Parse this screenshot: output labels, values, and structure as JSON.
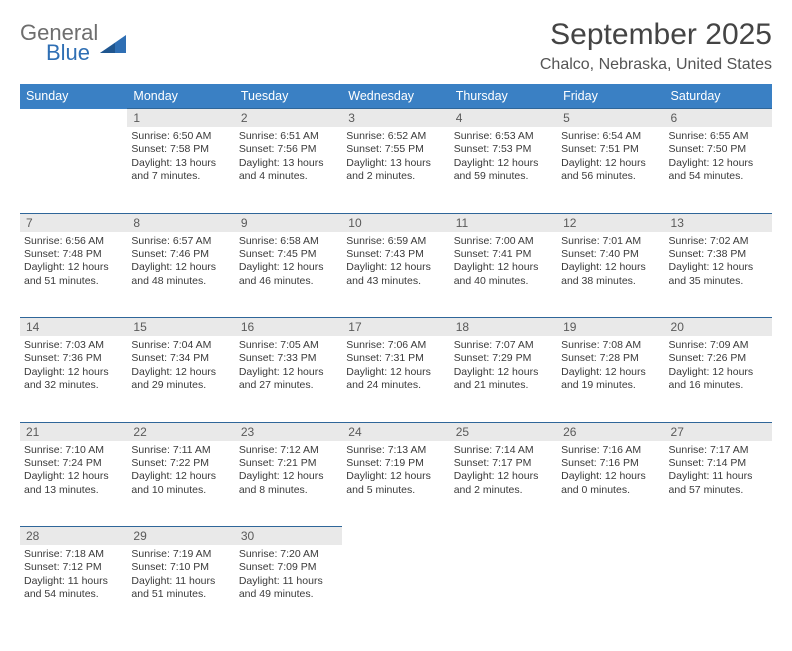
{
  "logo": {
    "line1": "General",
    "line2": "Blue"
  },
  "title": "September 2025",
  "location": "Chalco, Nebraska, United States",
  "dayHeaders": [
    "Sunday",
    "Monday",
    "Tuesday",
    "Wednesday",
    "Thursday",
    "Friday",
    "Saturday"
  ],
  "colors": {
    "headerBg": "#3a80c4",
    "rowBorder": "#2f6699",
    "dayBg": "#e9e9e9",
    "logoBlue": "#2f6fb4",
    "logoGray": "#6e6e6e"
  },
  "weeks": [
    [
      {
        "num": "",
        "sunrise": "",
        "sunset": "",
        "daylight": ""
      },
      {
        "num": "1",
        "sunrise": "Sunrise: 6:50 AM",
        "sunset": "Sunset: 7:58 PM",
        "daylight": "Daylight: 13 hours and 7 minutes."
      },
      {
        "num": "2",
        "sunrise": "Sunrise: 6:51 AM",
        "sunset": "Sunset: 7:56 PM",
        "daylight": "Daylight: 13 hours and 4 minutes."
      },
      {
        "num": "3",
        "sunrise": "Sunrise: 6:52 AM",
        "sunset": "Sunset: 7:55 PM",
        "daylight": "Daylight: 13 hours and 2 minutes."
      },
      {
        "num": "4",
        "sunrise": "Sunrise: 6:53 AM",
        "sunset": "Sunset: 7:53 PM",
        "daylight": "Daylight: 12 hours and 59 minutes."
      },
      {
        "num": "5",
        "sunrise": "Sunrise: 6:54 AM",
        "sunset": "Sunset: 7:51 PM",
        "daylight": "Daylight: 12 hours and 56 minutes."
      },
      {
        "num": "6",
        "sunrise": "Sunrise: 6:55 AM",
        "sunset": "Sunset: 7:50 PM",
        "daylight": "Daylight: 12 hours and 54 minutes."
      }
    ],
    [
      {
        "num": "7",
        "sunrise": "Sunrise: 6:56 AM",
        "sunset": "Sunset: 7:48 PM",
        "daylight": "Daylight: 12 hours and 51 minutes."
      },
      {
        "num": "8",
        "sunrise": "Sunrise: 6:57 AM",
        "sunset": "Sunset: 7:46 PM",
        "daylight": "Daylight: 12 hours and 48 minutes."
      },
      {
        "num": "9",
        "sunrise": "Sunrise: 6:58 AM",
        "sunset": "Sunset: 7:45 PM",
        "daylight": "Daylight: 12 hours and 46 minutes."
      },
      {
        "num": "10",
        "sunrise": "Sunrise: 6:59 AM",
        "sunset": "Sunset: 7:43 PM",
        "daylight": "Daylight: 12 hours and 43 minutes."
      },
      {
        "num": "11",
        "sunrise": "Sunrise: 7:00 AM",
        "sunset": "Sunset: 7:41 PM",
        "daylight": "Daylight: 12 hours and 40 minutes."
      },
      {
        "num": "12",
        "sunrise": "Sunrise: 7:01 AM",
        "sunset": "Sunset: 7:40 PM",
        "daylight": "Daylight: 12 hours and 38 minutes."
      },
      {
        "num": "13",
        "sunrise": "Sunrise: 7:02 AM",
        "sunset": "Sunset: 7:38 PM",
        "daylight": "Daylight: 12 hours and 35 minutes."
      }
    ],
    [
      {
        "num": "14",
        "sunrise": "Sunrise: 7:03 AM",
        "sunset": "Sunset: 7:36 PM",
        "daylight": "Daylight: 12 hours and 32 minutes."
      },
      {
        "num": "15",
        "sunrise": "Sunrise: 7:04 AM",
        "sunset": "Sunset: 7:34 PM",
        "daylight": "Daylight: 12 hours and 29 minutes."
      },
      {
        "num": "16",
        "sunrise": "Sunrise: 7:05 AM",
        "sunset": "Sunset: 7:33 PM",
        "daylight": "Daylight: 12 hours and 27 minutes."
      },
      {
        "num": "17",
        "sunrise": "Sunrise: 7:06 AM",
        "sunset": "Sunset: 7:31 PM",
        "daylight": "Daylight: 12 hours and 24 minutes."
      },
      {
        "num": "18",
        "sunrise": "Sunrise: 7:07 AM",
        "sunset": "Sunset: 7:29 PM",
        "daylight": "Daylight: 12 hours and 21 minutes."
      },
      {
        "num": "19",
        "sunrise": "Sunrise: 7:08 AM",
        "sunset": "Sunset: 7:28 PM",
        "daylight": "Daylight: 12 hours and 19 minutes."
      },
      {
        "num": "20",
        "sunrise": "Sunrise: 7:09 AM",
        "sunset": "Sunset: 7:26 PM",
        "daylight": "Daylight: 12 hours and 16 minutes."
      }
    ],
    [
      {
        "num": "21",
        "sunrise": "Sunrise: 7:10 AM",
        "sunset": "Sunset: 7:24 PM",
        "daylight": "Daylight: 12 hours and 13 minutes."
      },
      {
        "num": "22",
        "sunrise": "Sunrise: 7:11 AM",
        "sunset": "Sunset: 7:22 PM",
        "daylight": "Daylight: 12 hours and 10 minutes."
      },
      {
        "num": "23",
        "sunrise": "Sunrise: 7:12 AM",
        "sunset": "Sunset: 7:21 PM",
        "daylight": "Daylight: 12 hours and 8 minutes."
      },
      {
        "num": "24",
        "sunrise": "Sunrise: 7:13 AM",
        "sunset": "Sunset: 7:19 PM",
        "daylight": "Daylight: 12 hours and 5 minutes."
      },
      {
        "num": "25",
        "sunrise": "Sunrise: 7:14 AM",
        "sunset": "Sunset: 7:17 PM",
        "daylight": "Daylight: 12 hours and 2 minutes."
      },
      {
        "num": "26",
        "sunrise": "Sunrise: 7:16 AM",
        "sunset": "Sunset: 7:16 PM",
        "daylight": "Daylight: 12 hours and 0 minutes."
      },
      {
        "num": "27",
        "sunrise": "Sunrise: 7:17 AM",
        "sunset": "Sunset: 7:14 PM",
        "daylight": "Daylight: 11 hours and 57 minutes."
      }
    ],
    [
      {
        "num": "28",
        "sunrise": "Sunrise: 7:18 AM",
        "sunset": "Sunset: 7:12 PM",
        "daylight": "Daylight: 11 hours and 54 minutes."
      },
      {
        "num": "29",
        "sunrise": "Sunrise: 7:19 AM",
        "sunset": "Sunset: 7:10 PM",
        "daylight": "Daylight: 11 hours and 51 minutes."
      },
      {
        "num": "30",
        "sunrise": "Sunrise: 7:20 AM",
        "sunset": "Sunset: 7:09 PM",
        "daylight": "Daylight: 11 hours and 49 minutes."
      },
      {
        "num": "",
        "sunrise": "",
        "sunset": "",
        "daylight": ""
      },
      {
        "num": "",
        "sunrise": "",
        "sunset": "",
        "daylight": ""
      },
      {
        "num": "",
        "sunrise": "",
        "sunset": "",
        "daylight": ""
      },
      {
        "num": "",
        "sunrise": "",
        "sunset": "",
        "daylight": ""
      }
    ]
  ]
}
